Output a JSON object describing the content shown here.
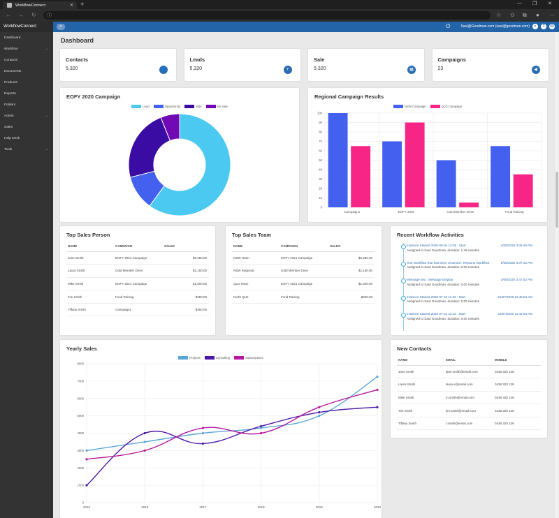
{
  "browser": {
    "tab_title": "WorkflowConnect",
    "url": "",
    "min": "—",
    "max": "❐",
    "close": "✕",
    "new_tab": "+"
  },
  "sidebar": {
    "brand": "WorkflowConnect",
    "items": [
      {
        "label": "Dashboard",
        "caret": ""
      },
      {
        "label": "Workflow",
        "caret": "^"
      },
      {
        "label": "Contacts",
        "caret": ""
      },
      {
        "label": "Documents",
        "caret": ""
      },
      {
        "label": "Products",
        "caret": ""
      },
      {
        "label": "Reports",
        "caret": ""
      },
      {
        "label": "Folders",
        "caret": ""
      },
      {
        "label": "Admin",
        "caret": "^"
      },
      {
        "label": "Sales",
        "caret": ""
      },
      {
        "label": "Help Desk",
        "caret": ""
      },
      {
        "label": "Tools",
        "caret": "^"
      }
    ]
  },
  "topbar": {
    "user": "Saul@Goodman.com (saul@goodman.com)"
  },
  "page_title": "Dashboard",
  "stats": [
    {
      "label": "Contacts",
      "value": "5,320",
      "icon": "user-icon"
    },
    {
      "label": "Leads",
      "value": "5,320",
      "icon": "user-plus-icon"
    },
    {
      "label": "Sale",
      "value": "5,320",
      "icon": "calculator-icon"
    },
    {
      "label": "Campaigns",
      "value": "23",
      "icon": "megaphone-icon"
    }
  ],
  "eofy": {
    "title": "EOFY 2020 Campaign"
  },
  "regional": {
    "title": "Regional Campaign Results"
  },
  "top_sales_person": {
    "title": "Top Sales Person",
    "headers": [
      "NAME",
      "CAMPAIGN",
      "SALES"
    ],
    "rows": [
      [
        "Jane Smith",
        "EOFY 2021 Campaign",
        "$3,350.00"
      ],
      [
        "Laura Smith",
        "Gold Member Drive",
        "$2,150.00"
      ],
      [
        "Mike Smith",
        "EOFY 2021 Campaign",
        "$1,500.00"
      ],
      [
        "Tim Smith",
        "Fund Raising",
        "$350.00"
      ],
      [
        "Tiffany Smith",
        "Campaign1",
        "$350.00"
      ]
    ]
  },
  "top_sales_team": {
    "title": "Top Sales Team",
    "headers": [
      "NAME",
      "CAMPAIGN",
      "SALES"
    ],
    "rows": [
      [
        "NSW Team",
        "EOFY 2021 Campaign",
        "$3,350.00"
      ],
      [
        "NSW Regional",
        "Gold Member Drive",
        "$2,150.00"
      ],
      [
        "QLD Team",
        "EOFY 2021 Campaign",
        "$1,500.00"
      ],
      [
        "North QLD",
        "Fund Raising",
        "$250.00"
      ]
    ]
  },
  "activities": {
    "title": "Recent Workflow Activities",
    "items": [
      {
        "title": "Instance Started 2020-09-04 13:05 : Start",
        "date": "4/09/2020 3:05:40 PM",
        "sub": "Assigned to Saul Goodman, duration: 1.46 minutes"
      },
      {
        "title": "Test Workflow that has been renamed : Rename Workflow",
        "date": "5/08/2020 3:07:15 PM",
        "sub": "Assigned to Saul Goodman, duration: 0.00 minutes"
      },
      {
        "title": "Message test : Message Display",
        "date": "4/08/2020 3:47:52 PM",
        "sub": "Assigned to Saul Goodman, duration: 0.00 minutes"
      },
      {
        "title": "Instance Started 2020-07-31 11:45 : Start",
        "date": "31/07/2020 11:45:54 AM",
        "sub": "Assigned to Saul Goodman, duration: 0.00 minutes"
      },
      {
        "title": "Instance Started 2020-07-31 11:42 : Start",
        "date": "31/07/2020 11:42:54 AM",
        "sub": "Assigned to Saul Goodman, duration: 0.00 minutes"
      }
    ]
  },
  "yearly": {
    "title": "Yearly Sales"
  },
  "new_contacts": {
    "title": "New Contacts",
    "headers": [
      "NAME",
      "EMAIL",
      "MOBILE"
    ],
    "rows": [
      [
        "Jane Smith",
        "jane.smith@email.com",
        "0438 320 139"
      ],
      [
        "Laura Smith",
        "laura.s@email.com",
        "0438 320 139"
      ],
      [
        "Mike Smith",
        "m.smith@email.com",
        "0438 320 139"
      ],
      [
        "Tim Smith",
        "tim.smith@email.com",
        "0438 320 139"
      ],
      [
        "Tiffany Smith",
        "t.smith@email.com",
        "0438 320 139"
      ]
    ]
  },
  "colors": {
    "topbar": "#2364a8",
    "sidebar": "#333333",
    "lead": "#4cc9f0",
    "opportunity": "#4361ee",
    "sale": "#3a0ca3",
    "no_sale": "#7209b7",
    "nsw": "#4361ee",
    "qld": "#f72585",
    "projects": "#5aa7d6",
    "consulting": "#4b17a6",
    "subscriptions": "#b5179e"
  },
  "chart_data": [
    {
      "type": "pie",
      "title": "EOFY 2020 Campaign",
      "labels": [
        "Lead",
        "Opportunity",
        "Sale",
        "No Sale"
      ],
      "values": [
        60,
        11,
        23,
        6
      ],
      "legend": "top"
    },
    {
      "type": "bar",
      "title": "Regional Campaign Results",
      "categories": [
        "Campaign1",
        "EOFY 2020",
        "Gold Member Drive",
        "Fund Raising"
      ],
      "series": [
        {
          "name": "NSW Campaign",
          "values": [
            100,
            70,
            50,
            65
          ]
        },
        {
          "name": "QLD Campaign",
          "values": [
            65,
            90,
            5,
            35
          ]
        }
      ],
      "ylim": [
        0,
        100
      ],
      "yticks": [
        0,
        10,
        20,
        30,
        40,
        50,
        60,
        70,
        80,
        90,
        100
      ],
      "grid": true,
      "legend": "top"
    },
    {
      "type": "line",
      "title": "Yearly Sales",
      "x": [
        "2015",
        "2016",
        "2017",
        "2018",
        "2019",
        "2020"
      ],
      "series": [
        {
          "name": "Projects",
          "values": [
            3000,
            3500,
            4000,
            4300,
            5000,
            7250
          ]
        },
        {
          "name": "Consulting",
          "values": [
            1000,
            4000,
            3400,
            4400,
            5200,
            5500
          ]
        },
        {
          "name": "Subscriptions",
          "values": [
            2500,
            3000,
            4300,
            4000,
            5500,
            6500
          ]
        }
      ],
      "ylim": [
        0,
        8000
      ],
      "yticks": [
        0,
        1000,
        2000,
        3000,
        4000,
        5000,
        6000,
        7000,
        8000
      ],
      "grid": true,
      "legend": "top"
    }
  ]
}
